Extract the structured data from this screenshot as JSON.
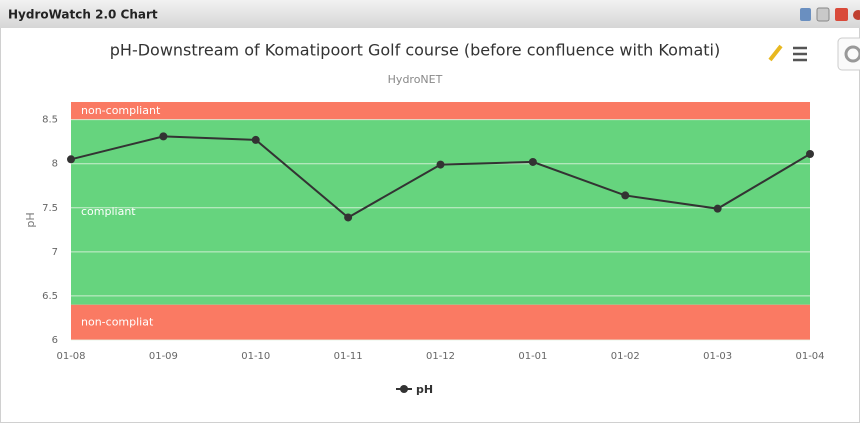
{
  "window": {
    "title": "HydroWatch 2.0 Chart"
  },
  "chart_data": {
    "type": "line",
    "title": "pH-Downstream of Komatipoort Golf course (before confluence with Komati)",
    "subtitle": "HydroNET",
    "y_label": "pH",
    "categories": [
      "01-08",
      "01-09",
      "01-10",
      "01-11",
      "01-12",
      "01-01",
      "01-02",
      "01-03",
      "01-04"
    ],
    "series": [
      {
        "name": "pH",
        "color": "#333333",
        "values": [
          8.05,
          8.31,
          8.27,
          7.39,
          7.99,
          8.02,
          7.64,
          7.49,
          8.11
        ]
      }
    ],
    "ylim": [
      6,
      8.7
    ],
    "yticks": [
      6,
      6.5,
      7,
      7.5,
      8,
      8.5
    ],
    "grid": true,
    "plot_bands": [
      {
        "from": 8.5,
        "to": 8.7,
        "label": "non-compliant",
        "color": "#fa7a63"
      },
      {
        "from": 6.4,
        "to": 8.5,
        "label": "compliant",
        "color": "#66d47e"
      },
      {
        "from": 6,
        "to": 6.4,
        "label": "non-compliat",
        "color": "#fa7a63"
      }
    ],
    "legend": "bottom"
  }
}
